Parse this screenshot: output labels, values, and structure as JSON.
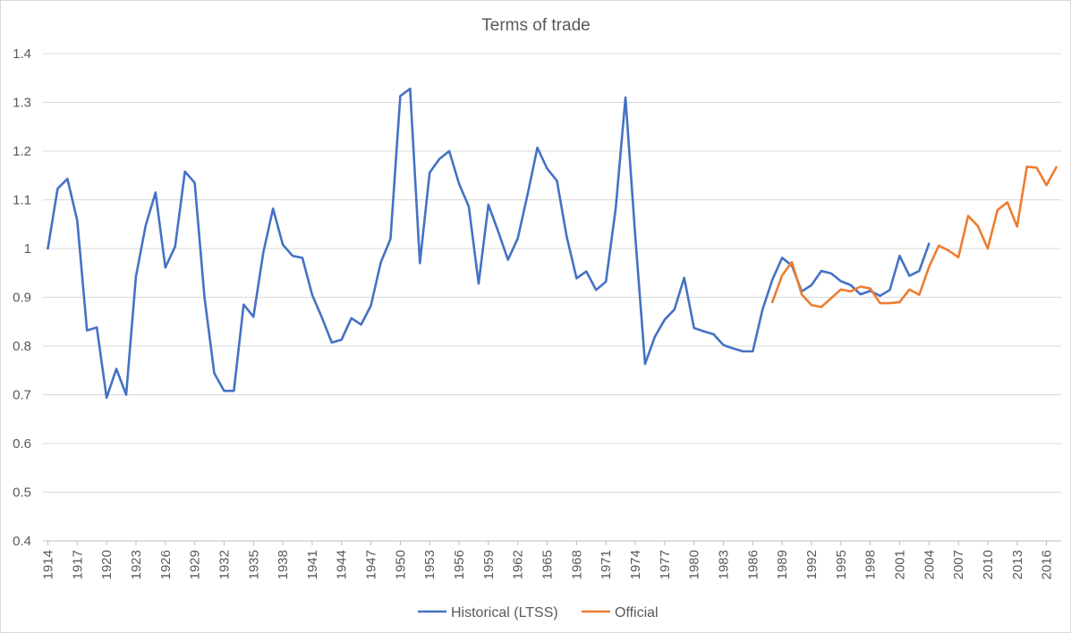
{
  "chart_data": {
    "type": "line",
    "title": "Terms of trade",
    "xlabel": "",
    "ylabel": "",
    "ylim": [
      0.4,
      1.4
    ],
    "ytick_labels": [
      "0.4",
      "0.5",
      "0.6",
      "0.7",
      "0.8",
      "0.9",
      "1",
      "1.1",
      "1.2",
      "1.3",
      "1.4"
    ],
    "xlim": [
      1914,
      2017
    ],
    "xtick_labels": [
      "1914",
      "1917",
      "1920",
      "1923",
      "1926",
      "1929",
      "1932",
      "1935",
      "1938",
      "1941",
      "1944",
      "1947",
      "1950",
      "1953",
      "1956",
      "1959",
      "1962",
      "1965",
      "1968",
      "1971",
      "1974",
      "1977",
      "1980",
      "1983",
      "1986",
      "1989",
      "1992",
      "1995",
      "1998",
      "2001",
      "2004",
      "2007",
      "2010",
      "2013",
      "2016"
    ],
    "grid": "horizontal",
    "legend_position": "bottom",
    "series": [
      {
        "name": "Historical (LTSS)",
        "color": "#4472c4",
        "start_year": 1914,
        "values": [
          1.0,
          1.123,
          1.143,
          1.058,
          0.832,
          0.838,
          0.694,
          0.753,
          0.7,
          0.943,
          1.048,
          1.115,
          0.961,
          1.004,
          1.158,
          1.135,
          0.9,
          0.744,
          0.708,
          0.708,
          0.885,
          0.86,
          0.991,
          1.082,
          1.008,
          0.985,
          0.981,
          0.905,
          0.858,
          0.807,
          0.813,
          0.857,
          0.844,
          0.883,
          0.971,
          1.02,
          1.313,
          1.328,
          0.97,
          1.156,
          1.184,
          1.2,
          1.133,
          1.086,
          0.928,
          1.09,
          1.035,
          0.977,
          1.021,
          1.111,
          1.207,
          1.164,
          1.139,
          1.024,
          0.939,
          0.953,
          0.915,
          0.932,
          1.082,
          1.31,
          1.025,
          0.763,
          0.819,
          0.854,
          0.875,
          0.94,
          0.837,
          0.83,
          0.824,
          0.802,
          0.795,
          0.789,
          0.789,
          0.875,
          0.936,
          0.981,
          0.965,
          0.912,
          0.925,
          0.954,
          0.949,
          0.933,
          0.925,
          0.906,
          0.913,
          0.903,
          0.915,
          0.985,
          0.944,
          0.954,
          1.01
        ]
      },
      {
        "name": "Official",
        "color": "#ed7d31",
        "start_year": 1988,
        "values": [
          0.89,
          0.945,
          0.972,
          0.906,
          0.884,
          0.88,
          0.898,
          0.916,
          0.912,
          0.922,
          0.918,
          0.888,
          0.888,
          0.89,
          0.916,
          0.905,
          0.962,
          1.006,
          0.996,
          0.982,
          1.067,
          1.046,
          1.0,
          1.079,
          1.095,
          1.045,
          1.168,
          1.166,
          1.13,
          1.167
        ]
      }
    ]
  }
}
